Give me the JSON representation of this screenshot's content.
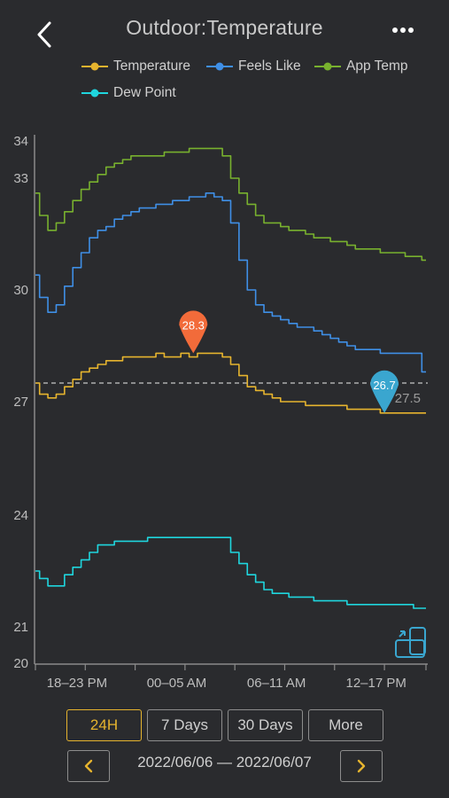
{
  "header": {
    "title": "Outdoor:Temperature",
    "back_icon": "chevron-left-icon",
    "menu_icon": "more-dots-icon"
  },
  "colors": {
    "background": "#2a2b2e",
    "temperature": "#e6b42e",
    "feels_like": "#3f8fe6",
    "app_temp": "#78b12e",
    "dew_point": "#1fd6de",
    "marker_max": "#f26b3a",
    "marker_min": "#3aa6cf",
    "accent": "#e6b42e"
  },
  "chart_data": {
    "type": "line",
    "y_ticks": [
      "20",
      "21",
      "24",
      "27",
      "30",
      "33",
      "34"
    ],
    "x_tick_labels": [
      "18–23 PM",
      "00–05 AM",
      "06–11 AM",
      "12–17 PM"
    ],
    "x": [
      18,
      18.5,
      19,
      19.5,
      20,
      20.5,
      21,
      21.5,
      22,
      22.5,
      23,
      23.5,
      0,
      0.5,
      1,
      1.5,
      2,
      2.5,
      3,
      3.5,
      4,
      4.5,
      5,
      5.5,
      6,
      6.5,
      7,
      7.5,
      8,
      8.5,
      9,
      9.5,
      10,
      10.5,
      11,
      11.5,
      12,
      12.5,
      13,
      13.5,
      14,
      14.5,
      15,
      15.5,
      16,
      16.5,
      17,
      17.5
    ],
    "series": [
      {
        "name": "Temperature",
        "color": "#e6b42e",
        "values": [
          27.5,
          27.2,
          27.1,
          27.2,
          27.4,
          27.6,
          27.8,
          27.9,
          28.0,
          28.1,
          28.1,
          28.2,
          28.2,
          28.2,
          28.2,
          28.3,
          28.2,
          28.2,
          28.3,
          28.2,
          28.3,
          28.3,
          28.3,
          28.2,
          28.0,
          27.7,
          27.4,
          27.3,
          27.2,
          27.1,
          27.0,
          27.0,
          27.0,
          26.9,
          26.9,
          26.9,
          26.9,
          26.9,
          26.8,
          26.8,
          26.8,
          26.8,
          26.7,
          26.7,
          26.7,
          26.7,
          26.7,
          26.7
        ]
      },
      {
        "name": "Feels Like",
        "color": "#3f8fe6",
        "values": [
          30.4,
          29.8,
          29.4,
          29.6,
          30.1,
          30.6,
          31.0,
          31.4,
          31.6,
          31.7,
          31.9,
          32.0,
          32.1,
          32.2,
          32.2,
          32.3,
          32.3,
          32.4,
          32.4,
          32.5,
          32.5,
          32.6,
          32.5,
          32.4,
          31.8,
          30.8,
          30.0,
          29.6,
          29.4,
          29.3,
          29.2,
          29.1,
          29.0,
          29.0,
          28.9,
          28.8,
          28.7,
          28.6,
          28.5,
          28.4,
          28.4,
          28.4,
          28.3,
          28.3,
          28.3,
          28.3,
          28.3,
          27.8
        ]
      },
      {
        "name": "App Temp",
        "color": "#78b12e",
        "values": [
          32.6,
          32.0,
          31.6,
          31.8,
          32.1,
          32.4,
          32.7,
          32.9,
          33.1,
          33.3,
          33.4,
          33.5,
          33.6,
          33.6,
          33.6,
          33.6,
          33.7,
          33.7,
          33.7,
          33.8,
          33.8,
          33.8,
          33.8,
          33.6,
          33.0,
          32.6,
          32.3,
          32.0,
          31.8,
          31.8,
          31.7,
          31.6,
          31.6,
          31.5,
          31.4,
          31.4,
          31.3,
          31.3,
          31.2,
          31.1,
          31.1,
          31.1,
          31.0,
          31.0,
          31.0,
          30.9,
          30.9,
          30.8
        ]
      },
      {
        "name": "Dew Point",
        "color": "#1fd6de",
        "values": [
          22.5,
          22.3,
          22.1,
          22.1,
          22.4,
          22.6,
          22.8,
          23.0,
          23.2,
          23.2,
          23.3,
          23.3,
          23.3,
          23.3,
          23.4,
          23.4,
          23.4,
          23.4,
          23.4,
          23.4,
          23.4,
          23.4,
          23.4,
          23.4,
          23.0,
          22.7,
          22.4,
          22.2,
          22.0,
          21.9,
          21.9,
          21.8,
          21.8,
          21.8,
          21.7,
          21.7,
          21.7,
          21.7,
          21.6,
          21.6,
          21.6,
          21.6,
          21.6,
          21.6,
          21.6,
          21.6,
          21.5,
          21.5
        ]
      }
    ],
    "reference_line": {
      "label": "27.5",
      "value": 27.5
    },
    "markers": [
      {
        "label": "28.3",
        "x": 3.5,
        "value": 28.3,
        "color": "#f26b3a"
      },
      {
        "label": "26.7",
        "x": 15.0,
        "value": 26.7,
        "color": "#3aa6cf"
      }
    ],
    "grid": false,
    "legend_position": "top"
  },
  "legend": [
    {
      "label": "Temperature",
      "color": "#e6b42e"
    },
    {
      "label": "Feels Like",
      "color": "#3f8fe6"
    },
    {
      "label": "App Temp",
      "color": "#78b12e"
    },
    {
      "label": "Dew Point",
      "color": "#1fd6de"
    }
  ],
  "chart_tool_icon": "landscape-rotate-icon",
  "range_buttons": [
    "24H",
    "7 Days",
    "30 Days",
    "More"
  ],
  "active_range": "24H",
  "date_range": "2022/06/06 — 2022/06/07",
  "prev_icon": "chevron-left-icon",
  "next_icon": "chevron-right-icon"
}
